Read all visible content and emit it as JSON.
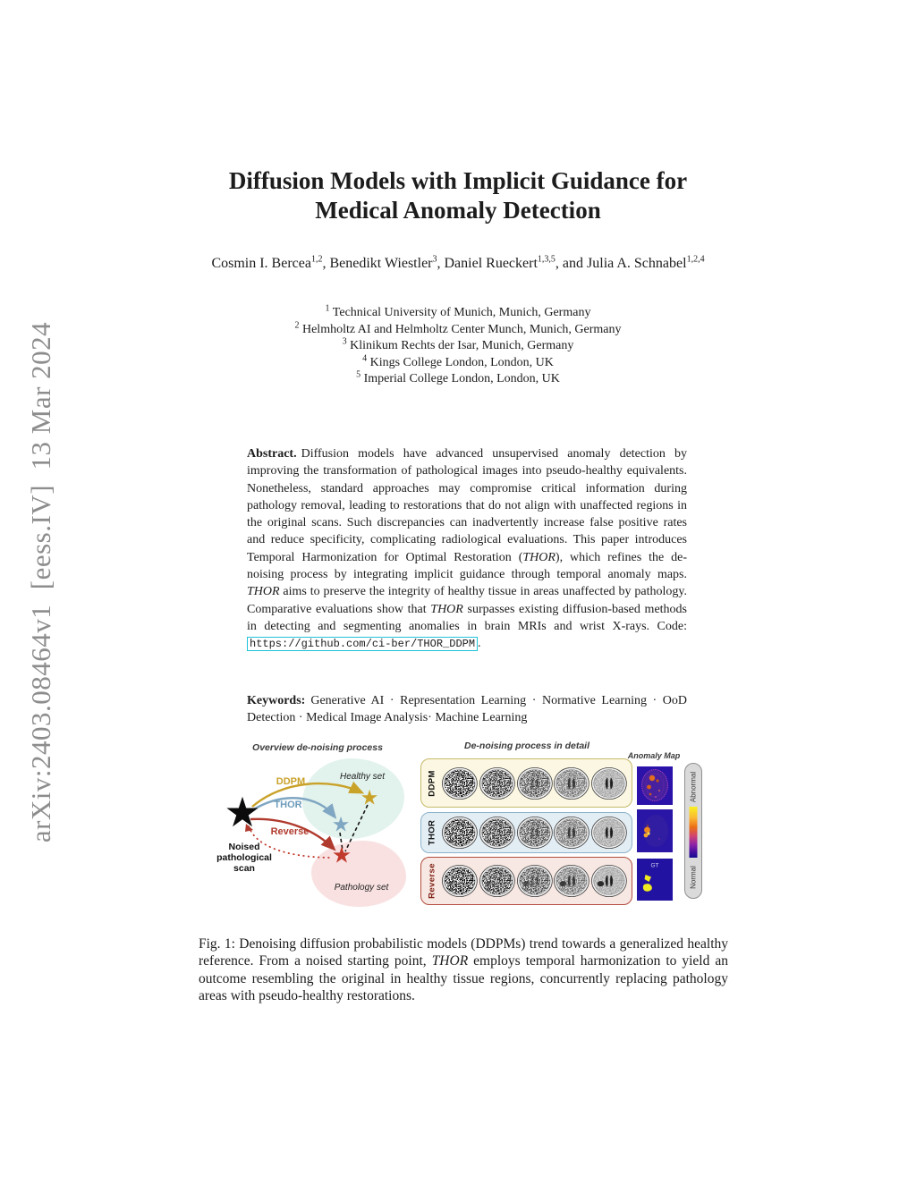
{
  "banner": {
    "text": "arXiv:2403.08464v1  [eess.IV]  13 Mar 2024"
  },
  "title": {
    "line1": "Diffusion Models with Implicit Guidance for",
    "line2": "Medical Anomaly Detection"
  },
  "authors": [
    {
      "name": "Cosmin I. Bercea",
      "sup": "1,2",
      "sep": ", "
    },
    {
      "name": "Benedikt Wiestler",
      "sup": "3",
      "sep": ", "
    },
    {
      "name": "Daniel Rueckert",
      "sup": "1,3,5",
      "sep": ", and "
    },
    {
      "name": "Julia A. Schnabel",
      "sup": "1,2,4",
      "sep": ""
    }
  ],
  "affiliations": [
    {
      "sup": "1",
      "text": "Technical University of Munich, Munich, Germany"
    },
    {
      "sup": "2",
      "text": "Helmholtz AI and Helmholtz Center Munch, Munich, Germany"
    },
    {
      "sup": "3",
      "text": "Klinikum Rechts der Isar, Munich, Germany"
    },
    {
      "sup": "4",
      "text": "Kings College London, London, UK"
    },
    {
      "sup": "5",
      "text": "Imperial College London, London, UK"
    }
  ],
  "abstract": {
    "label": "Abstract.",
    "segments": [
      {
        "t": "Diffusion models have advanced unsupervised anomaly detection by improving the transformation of pathological images into pseudo-healthy equivalents. Nonetheless, standard approaches may compromise critical information during pathology removal, leading to restorations that do not align with unaffected regions in the original scans. Such discrepancies can inadvertently increase false positive rates and reduce specificity, complicating radiological evaluations. This paper introduces Temporal Harmonization for Optimal Restoration (",
        "i": false
      },
      {
        "t": "THOR",
        "i": true
      },
      {
        "t": "), which refines the de-noising process by integrating implicit guidance through temporal anomaly maps. ",
        "i": false
      },
      {
        "t": "THOR",
        "i": true
      },
      {
        "t": " aims to preserve the integrity of healthy tissue in areas unaffected by pathology. Comparative evaluations show that ",
        "i": false
      },
      {
        "t": "THOR",
        "i": true
      },
      {
        "t": " surpasses existing diffusion-based methods in detecting and segmenting anomalies in brain MRIs and wrist X-rays. Code: ",
        "i": false
      }
    ],
    "code_url": "https://github.com/ci-ber/THOR_DDPM",
    "code_suffix": "."
  },
  "keywords": {
    "label": "Keywords:",
    "text": "Generative AI · Representation Learning · Normative Learning · OoD Detection · Medical Image Analysis· Machine Learning"
  },
  "figure": {
    "overview": {
      "title": "Overview de-noising process",
      "healthy_label": "Healthy set",
      "pathology_label": "Pathology set",
      "noised_label": "Noised pathological scan",
      "arrows": [
        {
          "label": "DDPM",
          "color": "#c9a22a"
        },
        {
          "label": "THOR",
          "color": "#7fa6c2"
        },
        {
          "label": "Reverse",
          "color": "#b03a2e"
        }
      ],
      "healthy_fill": "#e2f2ec",
      "pathology_fill": "#f9e1e1"
    },
    "detail": {
      "title": "De-noising process in detail",
      "rows": [
        {
          "label": "DDPM",
          "bg": "#fbf7e2",
          "border": "#c6ba6a",
          "label_color": "#111111",
          "lesion": false
        },
        {
          "label": "THOR",
          "bg": "#e3edf4",
          "border": "#8bb3cb",
          "label_color": "#111111",
          "lesion": false
        },
        {
          "label": "Reverse",
          "bg": "#f8e8e3",
          "border": "#b24b3c",
          "label_color": "#7e2113",
          "lesion": true
        }
      ],
      "noise_levels": [
        0.95,
        0.78,
        0.58,
        0.38,
        0.16
      ],
      "anomaly_title": "Anomaly Map",
      "gt_label": "GT",
      "colorbar": {
        "top": "Abnormal",
        "bottom": "Normal"
      }
    }
  },
  "caption": {
    "segments": [
      {
        "t": "Fig. 1: Denoising diffusion probabilistic models (DDPMs) trend towards a generalized healthy reference. From a noised starting point, ",
        "i": false
      },
      {
        "t": "THOR",
        "i": true
      },
      {
        "t": " employs temporal harmonization to yield an outcome resembling the original in healthy tissue regions, concurrently replacing pathology areas with pseudo-healthy restorations.",
        "i": false
      }
    ]
  }
}
